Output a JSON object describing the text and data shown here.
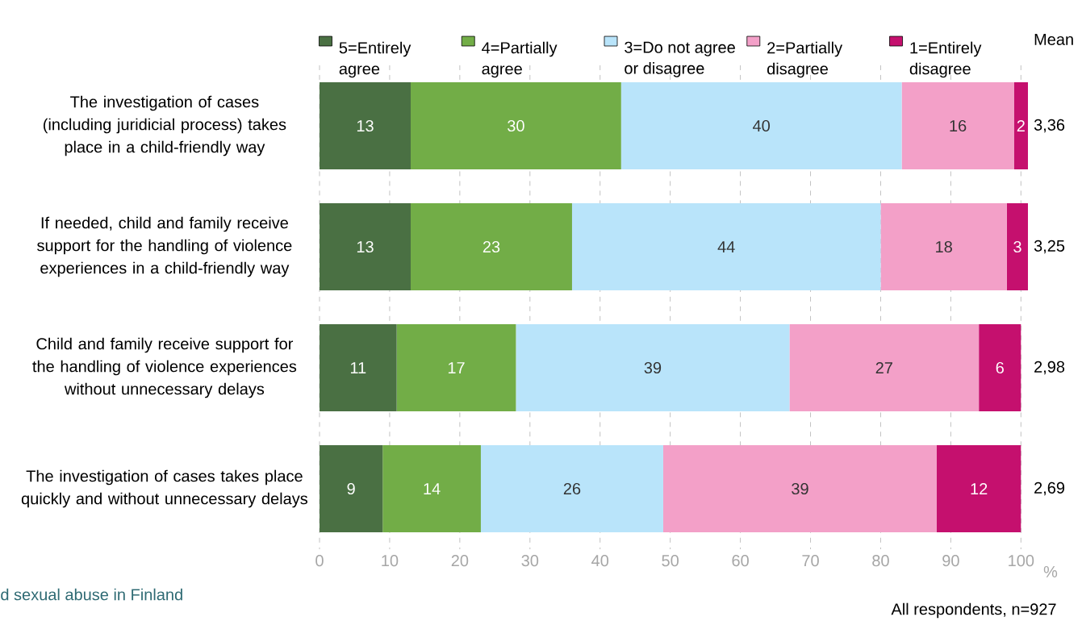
{
  "chart_data": {
    "type": "bar",
    "orientation": "horizontal",
    "stacked": true,
    "categories": [
      "The investigation of cases (including juridicial process) takes place in a child-friendly way",
      "If needed, child and family receive support for the handling of violence experiences in a child-friendly way",
      "Child and family receive support for the handling of violence experiences without unnecessary delays",
      "The investigation of cases takes place quickly and without unnecessary delays"
    ],
    "series": [
      {
        "name": "5=Entirely agree",
        "color": "#4a7043",
        "values": [
          13,
          13,
          11,
          9
        ]
      },
      {
        "name": "4=Partially agree",
        "color": "#72ad47",
        "values": [
          30,
          23,
          17,
          14
        ]
      },
      {
        "name": "3=Do not agree or disagree",
        "color": "#b9e4fa",
        "values": [
          40,
          44,
          39,
          26
        ]
      },
      {
        "name": "2=Partially disagree",
        "color": "#f3a0c8",
        "values": [
          16,
          18,
          27,
          39
        ]
      },
      {
        "name": "1=Entirely disagree",
        "color": "#c5106e",
        "values": [
          2,
          3,
          6,
          12
        ]
      }
    ],
    "data_labels": true,
    "xlim": [
      0,
      101
    ],
    "xticks": [
      0,
      10,
      20,
      30,
      40,
      50,
      60,
      70,
      80,
      90,
      100
    ],
    "xlabel": "%",
    "grid": "x",
    "legend": "top",
    "annotations": [
      "Mean",
      "3,36",
      "3,25",
      "2,98",
      "2,69",
      "d sexual abuse in Finland",
      "All respondents, n=927"
    ]
  }
}
